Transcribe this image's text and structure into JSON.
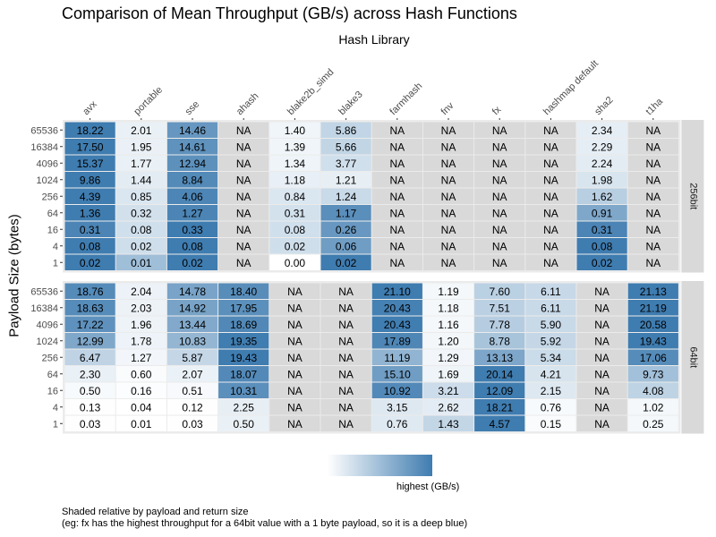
{
  "title": "Comparison of Mean Throughput (GB/s) across Hash Functions",
  "column_group_label": "Hash Library",
  "caption_line1": "Shaded relative by payload and return size",
  "caption_line2": "(eg: fx has the highest throughput for a 64bit value with a 1 byte payload, so it is a deep blue)",
  "colors": {
    "high": "#3f7cb0",
    "low": "#ffffff",
    "na": "#d9d9d9",
    "panel_bg": "#ebebeb",
    "strip": "#d9d9d9"
  },
  "chart_data": {
    "type": "heatmap",
    "title": "Comparison of Mean Throughput (GB/s) across Hash Functions",
    "xlabel": "Hash Library",
    "ylabel": "Payload Size (bytes)",
    "columns": [
      "avx",
      "portable",
      "sse",
      "ahash",
      "blake2b_simd",
      "blake3",
      "farmhash",
      "fnv",
      "fx",
      "hashmap default",
      "sha2",
      "t1ha"
    ],
    "rows": [
      "65536",
      "16384",
      "4096",
      "1024",
      "256",
      "64",
      "16",
      "4",
      "1"
    ],
    "legend_label": "highest (GB/s)",
    "na_label": "NA",
    "panels": [
      {
        "name": "256bit",
        "values": [
          [
            18.22,
            2.01,
            14.46,
            null,
            1.4,
            5.86,
            null,
            null,
            null,
            null,
            2.34,
            null
          ],
          [
            17.5,
            1.95,
            14.61,
            null,
            1.39,
            5.66,
            null,
            null,
            null,
            null,
            2.29,
            null
          ],
          [
            15.37,
            1.77,
            12.94,
            null,
            1.34,
            3.77,
            null,
            null,
            null,
            null,
            2.24,
            null
          ],
          [
            9.86,
            1.44,
            8.84,
            null,
            1.18,
            1.21,
            null,
            null,
            null,
            null,
            1.98,
            null
          ],
          [
            4.39,
            0.85,
            4.06,
            null,
            0.84,
            1.24,
            null,
            null,
            null,
            null,
            1.62,
            null
          ],
          [
            1.36,
            0.32,
            1.27,
            null,
            0.31,
            1.17,
            null,
            null,
            null,
            null,
            0.91,
            null
          ],
          [
            0.31,
            0.08,
            0.33,
            null,
            0.08,
            0.26,
            null,
            null,
            null,
            null,
            0.31,
            null
          ],
          [
            0.08,
            0.02,
            0.08,
            null,
            0.02,
            0.06,
            null,
            null,
            null,
            null,
            0.08,
            null
          ],
          [
            0.02,
            0.01,
            0.02,
            null,
            0.0,
            0.02,
            null,
            null,
            null,
            null,
            0.02,
            null
          ]
        ]
      },
      {
        "name": "64bit",
        "values": [
          [
            18.76,
            2.04,
            14.78,
            18.4,
            null,
            null,
            21.1,
            1.19,
            7.6,
            6.11,
            null,
            21.13
          ],
          [
            18.63,
            2.03,
            14.92,
            17.95,
            null,
            null,
            20.43,
            1.18,
            7.51,
            6.11,
            null,
            21.19
          ],
          [
            17.22,
            1.96,
            13.44,
            18.69,
            null,
            null,
            20.43,
            1.16,
            7.78,
            5.9,
            null,
            20.58
          ],
          [
            12.99,
            1.78,
            10.83,
            19.35,
            null,
            null,
            17.89,
            1.2,
            8.78,
            5.92,
            null,
            19.43
          ],
          [
            6.47,
            1.27,
            5.87,
            19.43,
            null,
            null,
            11.19,
            1.29,
            13.13,
            5.34,
            null,
            17.06
          ],
          [
            2.3,
            0.6,
            2.07,
            18.07,
            null,
            null,
            15.1,
            1.69,
            20.14,
            4.21,
            null,
            9.73
          ],
          [
            0.5,
            0.16,
            0.51,
            10.31,
            null,
            null,
            10.92,
            3.21,
            12.09,
            2.15,
            null,
            4.08
          ],
          [
            0.13,
            0.04,
            0.12,
            2.25,
            null,
            null,
            3.15,
            2.62,
            18.21,
            0.76,
            null,
            1.02
          ],
          [
            0.03,
            0.01,
            0.03,
            0.5,
            null,
            null,
            0.76,
            1.43,
            4.57,
            0.15,
            null,
            0.25
          ]
        ]
      }
    ]
  }
}
